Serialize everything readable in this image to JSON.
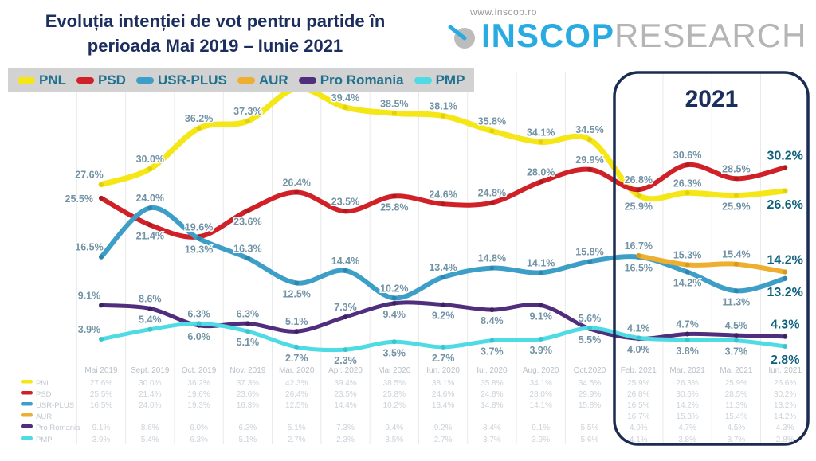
{
  "header": {
    "title_line1": "Evoluția intenției de vot pentru partide în",
    "title_line2": "perioada Mai 2019 – Iunie 2021",
    "logo": {
      "url": "www.inscop.ro",
      "brand_primary": "INSCOP",
      "brand_secondary": "RESEARCH"
    }
  },
  "chart_data": {
    "type": "line",
    "title": "Evoluția intenției de vot pentru partide în perioada Mai 2019 – Iunie 2021",
    "value_suffix": "%",
    "ylim": [
      0,
      45
    ],
    "grid": "vertical-gridlines-only",
    "legend_position": "top",
    "x_categories": [
      "Mai 2019",
      "Sept. 2019",
      "Oct. 2019",
      "Nov. 2019",
      "Mar. 2020",
      "Apr. 2020",
      "Mai 2020",
      "Iun. 2020",
      "Iul. 2020",
      "Aug. 2020",
      "Oct.2020",
      "Feb. 2021",
      "Mar. 2021",
      "Mai 2021",
      "Iun. 2021"
    ],
    "highlight": {
      "label": "2021",
      "start_category": "Feb. 2021",
      "end_category": "Iun. 2021"
    },
    "series": [
      {
        "name": "PNL",
        "color": "#f5e616",
        "marker": "#e2cf12",
        "width": 7,
        "values": [
          27.6,
          30.0,
          36.2,
          37.3,
          42.3,
          39.4,
          38.5,
          38.1,
          35.8,
          34.1,
          34.5,
          25.9,
          26.3,
          25.9,
          26.6
        ],
        "label_side": [
          "above",
          "above",
          "above",
          "above",
          "above",
          "above",
          "above",
          "above",
          "above",
          "above",
          "above",
          "below",
          "above",
          "below",
          "below"
        ]
      },
      {
        "name": "PSD",
        "color": "#cf2127",
        "marker": "#ad1a1f",
        "width": 6,
        "values": [
          25.5,
          21.4,
          19.6,
          23.6,
          26.4,
          23.5,
          25.8,
          24.6,
          24.8,
          28.0,
          29.9,
          26.8,
          30.6,
          28.5,
          30.2
        ],
        "label_side": [
          "left",
          "below",
          "above",
          "below",
          "above",
          "above",
          "below",
          "above",
          "above",
          "above",
          "above",
          "above",
          "above",
          "above",
          "above"
        ]
      },
      {
        "name": "USR-PLUS",
        "color": "#3d9fc8",
        "marker": "#2e86ad",
        "width": 6,
        "values": [
          16.5,
          24.0,
          19.3,
          16.3,
          12.5,
          14.4,
          10.2,
          13.4,
          14.8,
          14.1,
          15.8,
          16.5,
          14.2,
          11.3,
          13.2
        ],
        "label_side": [
          "above",
          "above",
          "below",
          "above",
          "below",
          "above",
          "above",
          "above",
          "above",
          "above",
          "above",
          "below",
          "below",
          "below",
          "below"
        ]
      },
      {
        "name": "AUR",
        "color": "#eeaf30",
        "marker": "#d6991f",
        "width": 6,
        "values": [
          null,
          null,
          null,
          null,
          null,
          null,
          null,
          null,
          null,
          null,
          null,
          16.7,
          15.3,
          15.4,
          14.2
        ],
        "label_side": [
          null,
          null,
          null,
          null,
          null,
          null,
          null,
          null,
          null,
          null,
          null,
          "above",
          "above",
          "above",
          "above"
        ]
      },
      {
        "name": "Pro Romania",
        "color": "#512d7d",
        "marker": "#3e2163",
        "width": 5,
        "values": [
          9.1,
          8.6,
          6.0,
          6.3,
          5.1,
          7.3,
          9.4,
          9.2,
          8.4,
          9.1,
          5.5,
          4.0,
          4.7,
          4.5,
          4.3
        ],
        "label_side": [
          "above",
          "above",
          "below",
          "above",
          "above",
          "above",
          "below",
          "below",
          "below",
          "below",
          "below",
          "below",
          "above",
          "above",
          "above"
        ]
      },
      {
        "name": "PMP",
        "color": "#4fdbe4",
        "marker": "#3bc3ce",
        "width": 5,
        "values": [
          3.9,
          5.4,
          6.3,
          5.1,
          2.7,
          2.3,
          3.5,
          2.7,
          3.7,
          3.9,
          5.6,
          4.1,
          3.8,
          3.7,
          2.8
        ],
        "label_side": [
          "above",
          "above",
          "above",
          "below",
          "below",
          "below",
          "below",
          "below",
          "below",
          "below",
          "above",
          "above",
          "below",
          "below",
          "below"
        ]
      }
    ]
  }
}
